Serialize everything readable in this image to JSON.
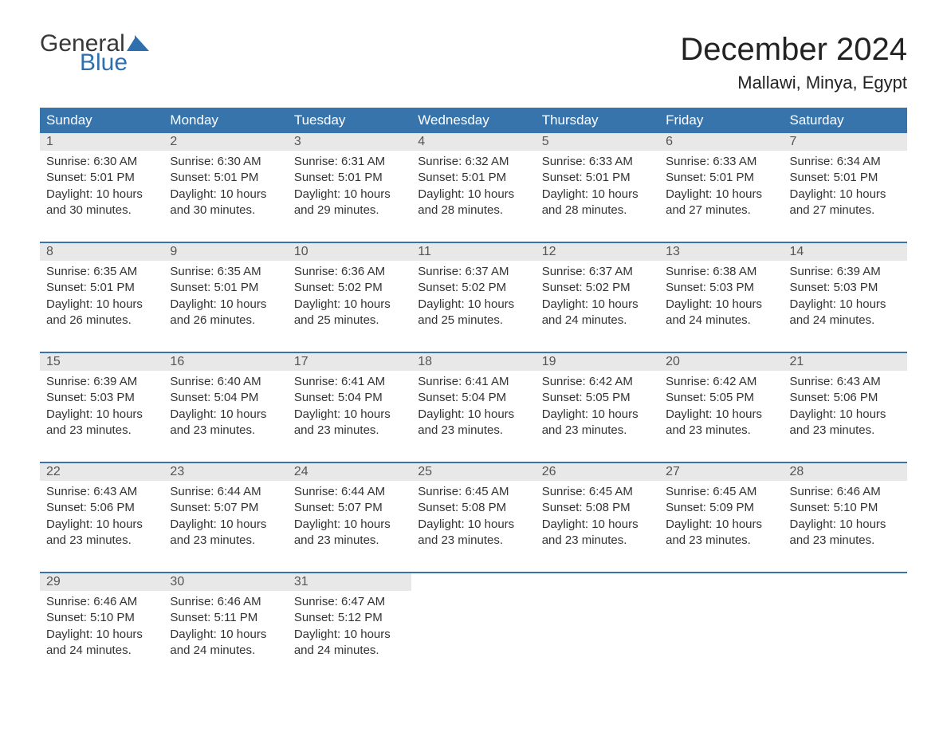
{
  "logo": {
    "word1": "General",
    "word2": "Blue",
    "word1_color": "#383838",
    "word2_color": "#2f6fad",
    "flag_color": "#2f6fad"
  },
  "title": "December 2024",
  "location": "Mallawi, Minya, Egypt",
  "colors": {
    "header_bg": "#3874ac",
    "header_text": "#ffffff",
    "day_number_bg": "#e8e8e8",
    "week_border": "#3874ac",
    "body_text": "#333333",
    "background": "#ffffff"
  },
  "typography": {
    "title_fontsize": 40,
    "location_fontsize": 22,
    "header_fontsize": 17,
    "daynum_fontsize": 16,
    "body_fontsize": 15
  },
  "weekdays": [
    "Sunday",
    "Monday",
    "Tuesday",
    "Wednesday",
    "Thursday",
    "Friday",
    "Saturday"
  ],
  "weeks": [
    [
      {
        "n": "1",
        "sunrise": "Sunrise: 6:30 AM",
        "sunset": "Sunset: 5:01 PM",
        "day1": "Daylight: 10 hours",
        "day2": "and 30 minutes."
      },
      {
        "n": "2",
        "sunrise": "Sunrise: 6:30 AM",
        "sunset": "Sunset: 5:01 PM",
        "day1": "Daylight: 10 hours",
        "day2": "and 30 minutes."
      },
      {
        "n": "3",
        "sunrise": "Sunrise: 6:31 AM",
        "sunset": "Sunset: 5:01 PM",
        "day1": "Daylight: 10 hours",
        "day2": "and 29 minutes."
      },
      {
        "n": "4",
        "sunrise": "Sunrise: 6:32 AM",
        "sunset": "Sunset: 5:01 PM",
        "day1": "Daylight: 10 hours",
        "day2": "and 28 minutes."
      },
      {
        "n": "5",
        "sunrise": "Sunrise: 6:33 AM",
        "sunset": "Sunset: 5:01 PM",
        "day1": "Daylight: 10 hours",
        "day2": "and 28 minutes."
      },
      {
        "n": "6",
        "sunrise": "Sunrise: 6:33 AM",
        "sunset": "Sunset: 5:01 PM",
        "day1": "Daylight: 10 hours",
        "day2": "and 27 minutes."
      },
      {
        "n": "7",
        "sunrise": "Sunrise: 6:34 AM",
        "sunset": "Sunset: 5:01 PM",
        "day1": "Daylight: 10 hours",
        "day2": "and 27 minutes."
      }
    ],
    [
      {
        "n": "8",
        "sunrise": "Sunrise: 6:35 AM",
        "sunset": "Sunset: 5:01 PM",
        "day1": "Daylight: 10 hours",
        "day2": "and 26 minutes."
      },
      {
        "n": "9",
        "sunrise": "Sunrise: 6:35 AM",
        "sunset": "Sunset: 5:01 PM",
        "day1": "Daylight: 10 hours",
        "day2": "and 26 minutes."
      },
      {
        "n": "10",
        "sunrise": "Sunrise: 6:36 AM",
        "sunset": "Sunset: 5:02 PM",
        "day1": "Daylight: 10 hours",
        "day2": "and 25 minutes."
      },
      {
        "n": "11",
        "sunrise": "Sunrise: 6:37 AM",
        "sunset": "Sunset: 5:02 PM",
        "day1": "Daylight: 10 hours",
        "day2": "and 25 minutes."
      },
      {
        "n": "12",
        "sunrise": "Sunrise: 6:37 AM",
        "sunset": "Sunset: 5:02 PM",
        "day1": "Daylight: 10 hours",
        "day2": "and 24 minutes."
      },
      {
        "n": "13",
        "sunrise": "Sunrise: 6:38 AM",
        "sunset": "Sunset: 5:03 PM",
        "day1": "Daylight: 10 hours",
        "day2": "and 24 minutes."
      },
      {
        "n": "14",
        "sunrise": "Sunrise: 6:39 AM",
        "sunset": "Sunset: 5:03 PM",
        "day1": "Daylight: 10 hours",
        "day2": "and 24 minutes."
      }
    ],
    [
      {
        "n": "15",
        "sunrise": "Sunrise: 6:39 AM",
        "sunset": "Sunset: 5:03 PM",
        "day1": "Daylight: 10 hours",
        "day2": "and 23 minutes."
      },
      {
        "n": "16",
        "sunrise": "Sunrise: 6:40 AM",
        "sunset": "Sunset: 5:04 PM",
        "day1": "Daylight: 10 hours",
        "day2": "and 23 minutes."
      },
      {
        "n": "17",
        "sunrise": "Sunrise: 6:41 AM",
        "sunset": "Sunset: 5:04 PM",
        "day1": "Daylight: 10 hours",
        "day2": "and 23 minutes."
      },
      {
        "n": "18",
        "sunrise": "Sunrise: 6:41 AM",
        "sunset": "Sunset: 5:04 PM",
        "day1": "Daylight: 10 hours",
        "day2": "and 23 minutes."
      },
      {
        "n": "19",
        "sunrise": "Sunrise: 6:42 AM",
        "sunset": "Sunset: 5:05 PM",
        "day1": "Daylight: 10 hours",
        "day2": "and 23 minutes."
      },
      {
        "n": "20",
        "sunrise": "Sunrise: 6:42 AM",
        "sunset": "Sunset: 5:05 PM",
        "day1": "Daylight: 10 hours",
        "day2": "and 23 minutes."
      },
      {
        "n": "21",
        "sunrise": "Sunrise: 6:43 AM",
        "sunset": "Sunset: 5:06 PM",
        "day1": "Daylight: 10 hours",
        "day2": "and 23 minutes."
      }
    ],
    [
      {
        "n": "22",
        "sunrise": "Sunrise: 6:43 AM",
        "sunset": "Sunset: 5:06 PM",
        "day1": "Daylight: 10 hours",
        "day2": "and 23 minutes."
      },
      {
        "n": "23",
        "sunrise": "Sunrise: 6:44 AM",
        "sunset": "Sunset: 5:07 PM",
        "day1": "Daylight: 10 hours",
        "day2": "and 23 minutes."
      },
      {
        "n": "24",
        "sunrise": "Sunrise: 6:44 AM",
        "sunset": "Sunset: 5:07 PM",
        "day1": "Daylight: 10 hours",
        "day2": "and 23 minutes."
      },
      {
        "n": "25",
        "sunrise": "Sunrise: 6:45 AM",
        "sunset": "Sunset: 5:08 PM",
        "day1": "Daylight: 10 hours",
        "day2": "and 23 minutes."
      },
      {
        "n": "26",
        "sunrise": "Sunrise: 6:45 AM",
        "sunset": "Sunset: 5:08 PM",
        "day1": "Daylight: 10 hours",
        "day2": "and 23 minutes."
      },
      {
        "n": "27",
        "sunrise": "Sunrise: 6:45 AM",
        "sunset": "Sunset: 5:09 PM",
        "day1": "Daylight: 10 hours",
        "day2": "and 23 minutes."
      },
      {
        "n": "28",
        "sunrise": "Sunrise: 6:46 AM",
        "sunset": "Sunset: 5:10 PM",
        "day1": "Daylight: 10 hours",
        "day2": "and 23 minutes."
      }
    ],
    [
      {
        "n": "29",
        "sunrise": "Sunrise: 6:46 AM",
        "sunset": "Sunset: 5:10 PM",
        "day1": "Daylight: 10 hours",
        "day2": "and 24 minutes."
      },
      {
        "n": "30",
        "sunrise": "Sunrise: 6:46 AM",
        "sunset": "Sunset: 5:11 PM",
        "day1": "Daylight: 10 hours",
        "day2": "and 24 minutes."
      },
      {
        "n": "31",
        "sunrise": "Sunrise: 6:47 AM",
        "sunset": "Sunset: 5:12 PM",
        "day1": "Daylight: 10 hours",
        "day2": "and 24 minutes."
      },
      {
        "empty": true
      },
      {
        "empty": true
      },
      {
        "empty": true
      },
      {
        "empty": true
      }
    ]
  ]
}
